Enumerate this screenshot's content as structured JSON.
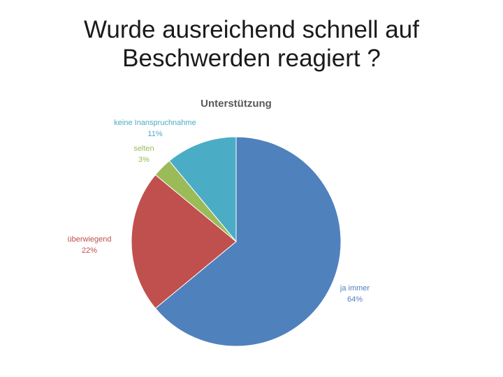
{
  "slide": {
    "title_line1": "Wurde ausreichend schnell auf",
    "title_line2": "Beschwerden reagiert ?"
  },
  "chart_data": {
    "type": "pie",
    "title": "Unterstützung",
    "slices": [
      {
        "label": "ja immer",
        "value": 64,
        "display": "64%",
        "color": "#4F81BD"
      },
      {
        "label": "überwiegend",
        "value": 22,
        "display": "22%",
        "color": "#C0504D"
      },
      {
        "label": "selten",
        "value": 3,
        "display": "3%",
        "color": "#9BBB59"
      },
      {
        "label": "keine Inanspruchnahme",
        "value": 11,
        "display": "11%",
        "color": "#4BACC6"
      }
    ],
    "start": "12 o'clock",
    "direction": "clockwise",
    "legend": "none",
    "data_labels": "outside"
  }
}
